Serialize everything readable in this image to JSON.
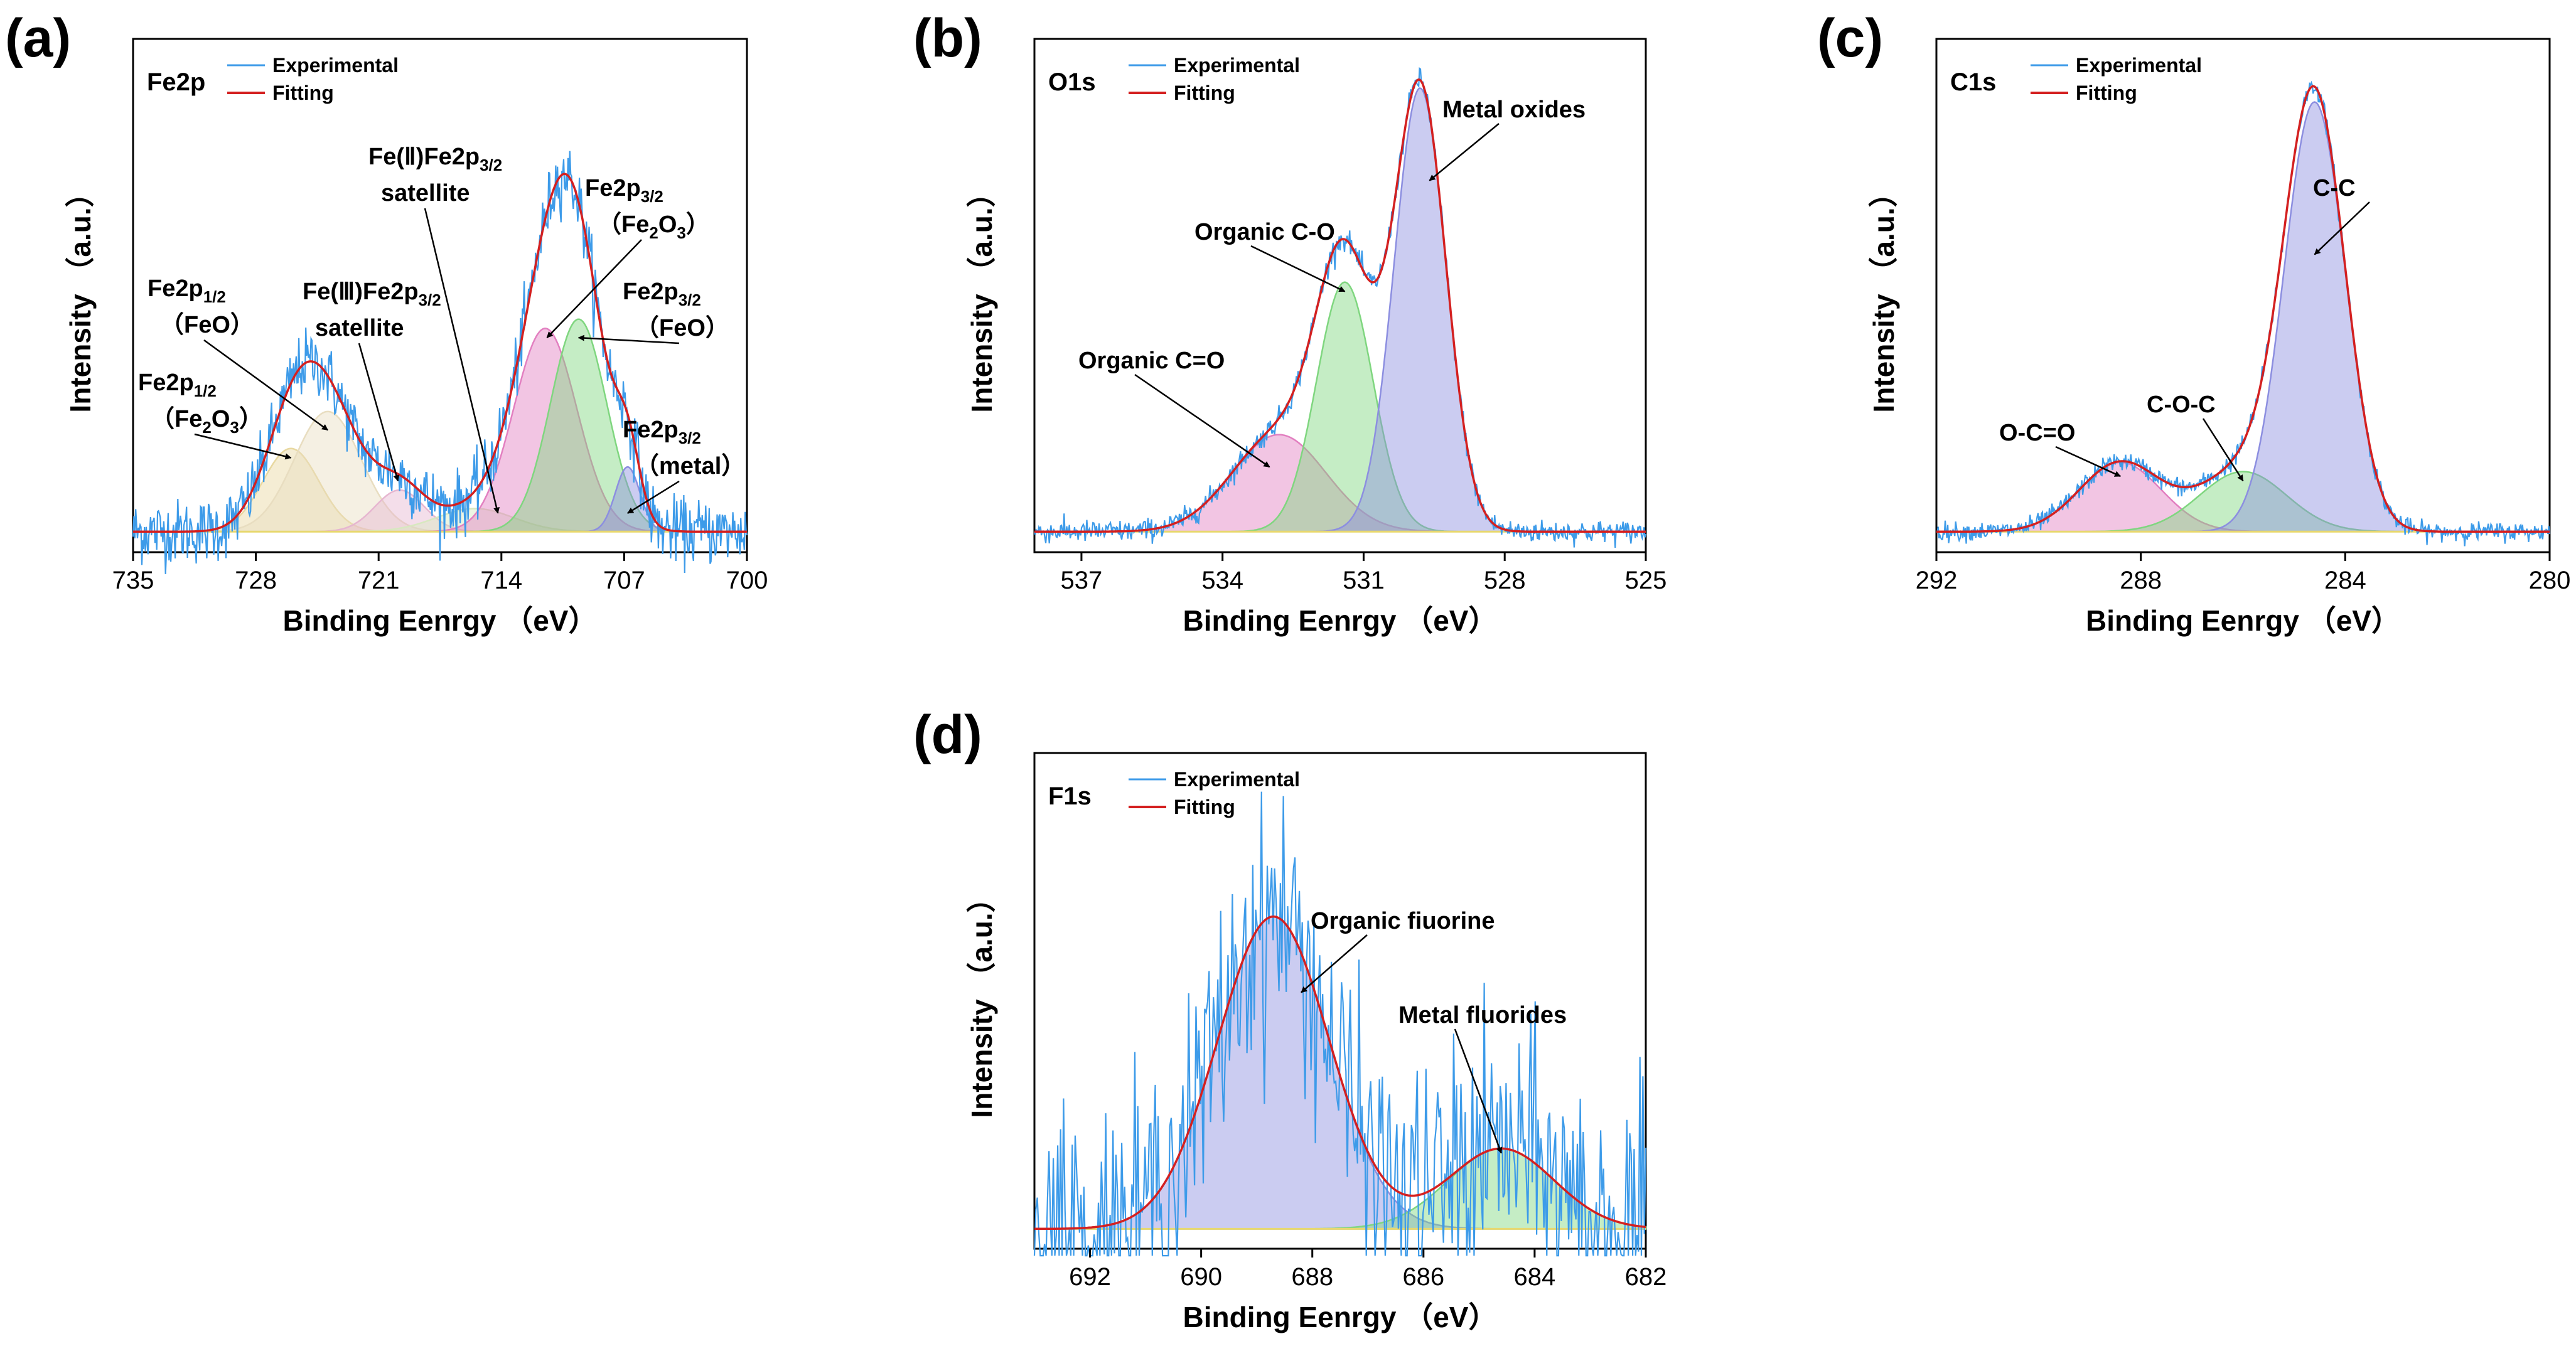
{
  "figure": {
    "xlabel": "Binding Eenrgy （eV）",
    "ylabel": "Intensity （a.u.）",
    "legend": {
      "experimental": "Experimental",
      "fitting": "Fitting"
    },
    "colors": {
      "experimental": "#3d9be9",
      "fitting": "#d42020",
      "baseline": "#e8d870",
      "peak_gray": "#b6b6c8",
      "peak_blue": "#8c8ee0",
      "peak_green": "#7fd67f",
      "peak_pink": "#e27fc0",
      "peak_beige": "#e8ddc0",
      "peak_gold": "#e8d8a0"
    }
  },
  "chart_data": [
    {
      "id": "a",
      "panel_label": "(a)",
      "tag": "Fe2p",
      "type": "line",
      "xlabel": "Binding Eenrgy （eV）",
      "ylabel": "Intensity （a.u.）",
      "xlim": [
        735,
        700
      ],
      "ylim": [
        0,
        100
      ],
      "xticks": [
        735,
        728,
        721,
        714,
        707,
        700
      ],
      "noise": 3.5,
      "baseline": [
        0,
        0
      ],
      "peaks": [
        {
          "name": "Fe2p1/2 (Fe2O3)",
          "center": 726.0,
          "height": 18,
          "sigma": 1.6,
          "fill": "#e8d8a0"
        },
        {
          "name": "Fe2p1/2 (FeO)",
          "center": 723.9,
          "height": 26,
          "sigma": 1.9,
          "fill": "#e8ddc0"
        },
        {
          "name": "Fe(III)Fe2p3/2 satellite",
          "center": 719.8,
          "height": 9,
          "sigma": 1.4,
          "fill": "#e6b6d0"
        },
        {
          "name": "Fe(II)Fe2p3/2 satellite",
          "center": 715.5,
          "height": 5,
          "sigma": 2.2,
          "fill": "#d8e8c0"
        },
        {
          "name": "Fe2p3/2 (Fe2O3)",
          "center": 711.5,
          "height": 44,
          "sigma": 1.8,
          "fill": "#e27fc0"
        },
        {
          "name": "Fe2p3/2 (FeO)",
          "center": 709.6,
          "height": 46,
          "sigma": 1.6,
          "fill": "#7fd67f"
        },
        {
          "name": "Fe2p3/2 (metal)",
          "center": 706.8,
          "height": 14,
          "sigma": 0.7,
          "fill": "#8c8ee0"
        }
      ],
      "annotations": [
        {
          "main": "Fe2p",
          "sub": "1/2",
          "line2": "（Fe",
          "line2_sub": "2",
          "line2_end": "O",
          "line2_sub2": "3",
          "line2_close": "）"
        },
        {
          "main": "Fe2p",
          "sub": "1/2",
          "line2": "（FeO）"
        },
        {
          "main": "Fe(Ⅲ)Fe2p",
          "sub": "3/2",
          "line2": "satellite"
        },
        {
          "main": "Fe(Ⅱ)Fe2p",
          "sub": "3/2",
          "line2": "satellite"
        },
        {
          "main": "Fe2p",
          "sub": "3/2",
          "line2": "（Fe",
          "line2_sub": "2",
          "line2_end": "O",
          "line2_sub2": "3",
          "line2_close": "）"
        },
        {
          "main": "Fe2p",
          "sub": "3/2",
          "line2": "（FeO）"
        },
        {
          "main": "Fe2p",
          "sub": "3/2",
          "line2": "（metal）"
        }
      ]
    },
    {
      "id": "b",
      "panel_label": "(b)",
      "tag": "O1s",
      "type": "line",
      "xlabel": "Binding Eenrgy （eV）",
      "ylabel": "Intensity （a.u.）",
      "xlim": [
        538,
        525
      ],
      "ylim": [
        0,
        100
      ],
      "xticks": [
        537,
        534,
        531,
        528,
        525
      ],
      "noise": 1.2,
      "baseline": [
        0,
        0
      ],
      "peaks": [
        {
          "name": "Organic C=O",
          "center": 532.8,
          "height": 21,
          "sigma": 1.0,
          "fill": "#e27fc0"
        },
        {
          "name": "Organic C-O",
          "center": 531.4,
          "height": 54,
          "sigma": 0.6,
          "fill": "#7fd67f"
        },
        {
          "name": "Metal oxides",
          "center": 529.8,
          "height": 96,
          "sigma": 0.55,
          "fill": "#8c8ee0"
        }
      ],
      "annotations": [
        {
          "main": "Organic C=O"
        },
        {
          "main": "Organic C-O"
        },
        {
          "main": "Metal oxides"
        }
      ]
    },
    {
      "id": "c",
      "panel_label": "(c)",
      "tag": "C1s",
      "type": "line",
      "xlabel": "Binding Eenrgy （eV）",
      "ylabel": "Intensity （a.u.）",
      "xlim": [
        292,
        280
      ],
      "ylim": [
        0,
        100
      ],
      "xticks": [
        292,
        288,
        284,
        280
      ],
      "noise": 1.0,
      "baseline": [
        0,
        0
      ],
      "peaks": [
        {
          "name": "O-C=O",
          "center": 288.4,
          "height": 15,
          "sigma": 0.8,
          "fill": "#e27fc0"
        },
        {
          "name": "C-O-C",
          "center": 286.0,
          "height": 13,
          "sigma": 0.85,
          "fill": "#7fd67f"
        },
        {
          "name": "C-C",
          "center": 284.6,
          "height": 93,
          "sigma": 0.6,
          "fill": "#8c8ee0"
        }
      ],
      "annotations": [
        {
          "main": "O-C=O"
        },
        {
          "main": "C-O-C"
        },
        {
          "main": "C-C"
        }
      ]
    },
    {
      "id": "d",
      "panel_label": "(d)",
      "tag": "F1s",
      "type": "line",
      "xlabel": "Binding Eenrgy （eV）",
      "ylabel": "Intensity （a.u.）",
      "xlim": [
        693,
        682
      ],
      "ylim": [
        0,
        100
      ],
      "xticks": [
        692,
        690,
        688,
        686,
        684,
        682
      ],
      "noise": 14,
      "baseline": [
        0,
        0
      ],
      "peaks": [
        {
          "name": "Organic fiuorine",
          "center": 688.7,
          "height": 70,
          "sigma": 1.0,
          "fill": "#8c8ee0"
        },
        {
          "name": "Metal fluorides",
          "center": 684.6,
          "height": 18,
          "sigma": 0.95,
          "fill": "#7fd67f"
        }
      ],
      "annotations": [
        {
          "main": "Organic fiuorine"
        },
        {
          "main": "Metal fluorides"
        }
      ]
    }
  ]
}
